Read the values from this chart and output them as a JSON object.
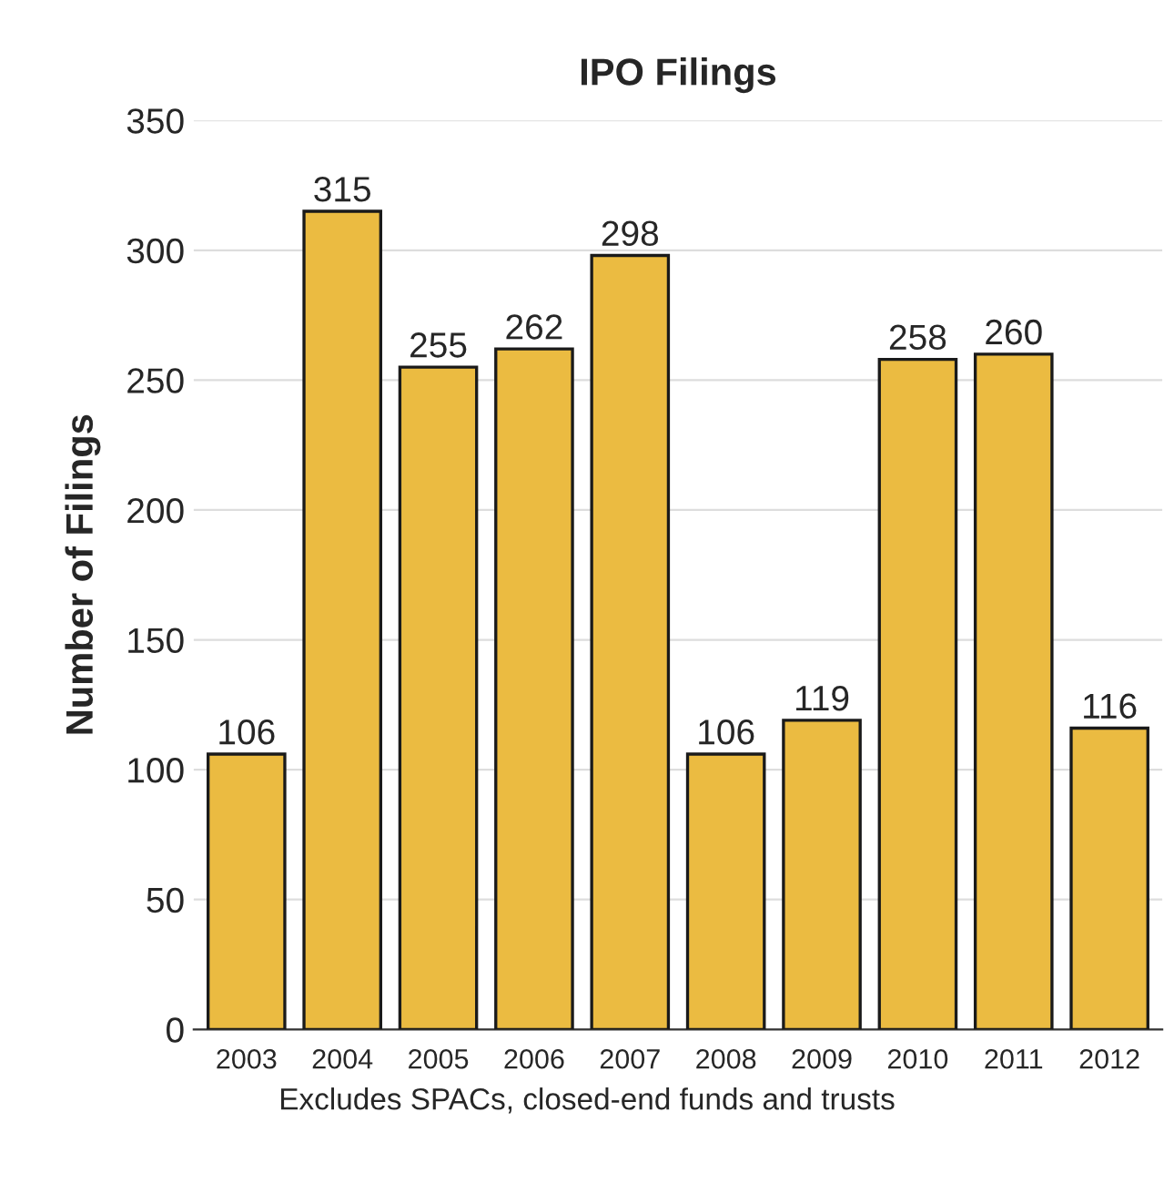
{
  "chart_data": {
    "type": "bar",
    "title": "IPO Filings",
    "ylabel": "Number of Filings",
    "categories": [
      "2003",
      "2004",
      "2005",
      "2006",
      "2007",
      "2008",
      "2009",
      "2010",
      "2011",
      "2012"
    ],
    "values": [
      106,
      315,
      255,
      262,
      298,
      106,
      119,
      258,
      260,
      116
    ],
    "color": "#ebbb41",
    "ylim": [
      0,
      350
    ],
    "yticks": [
      0,
      50,
      100,
      150,
      200,
      250,
      300,
      350
    ],
    "grid": "y",
    "data_labels": true,
    "annotations": [
      "Excludes SPACs, closed-end funds and trusts"
    ]
  }
}
